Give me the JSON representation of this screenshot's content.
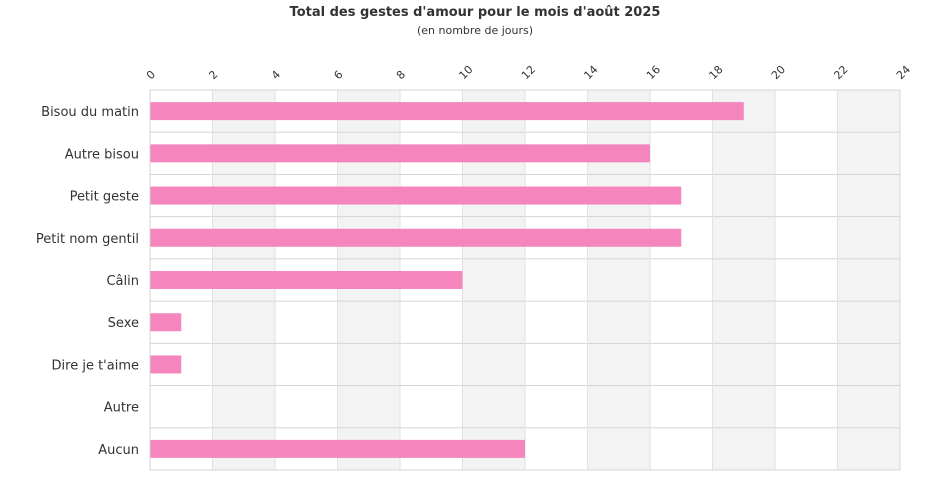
{
  "chart_data": {
    "type": "bar",
    "orientation": "horizontal",
    "title": "Total des gestes d'amour pour le mois d'août 2025",
    "subtitle": "(en nombre de jours)",
    "categories": [
      "Bisou du matin",
      "Autre bisou",
      "Petit geste",
      "Petit nom gentil",
      "Câlin",
      "Sexe",
      "Dire je t'aime",
      "Autre",
      "Aucun"
    ],
    "values": [
      19,
      16,
      17,
      17,
      10,
      1,
      1,
      0,
      12
    ],
    "xlim": [
      0,
      24
    ],
    "xticks": [
      "0",
      "2",
      "4",
      "6",
      "8",
      "10",
      "12",
      "14",
      "16",
      "18",
      "20",
      "22",
      "24"
    ],
    "axis_position": "top",
    "grid": true,
    "legend": "none",
    "colors": {
      "bar": "#f485bd",
      "band": "#f3f3f3",
      "grid": "#d4d4d4",
      "text": "#333333"
    }
  }
}
